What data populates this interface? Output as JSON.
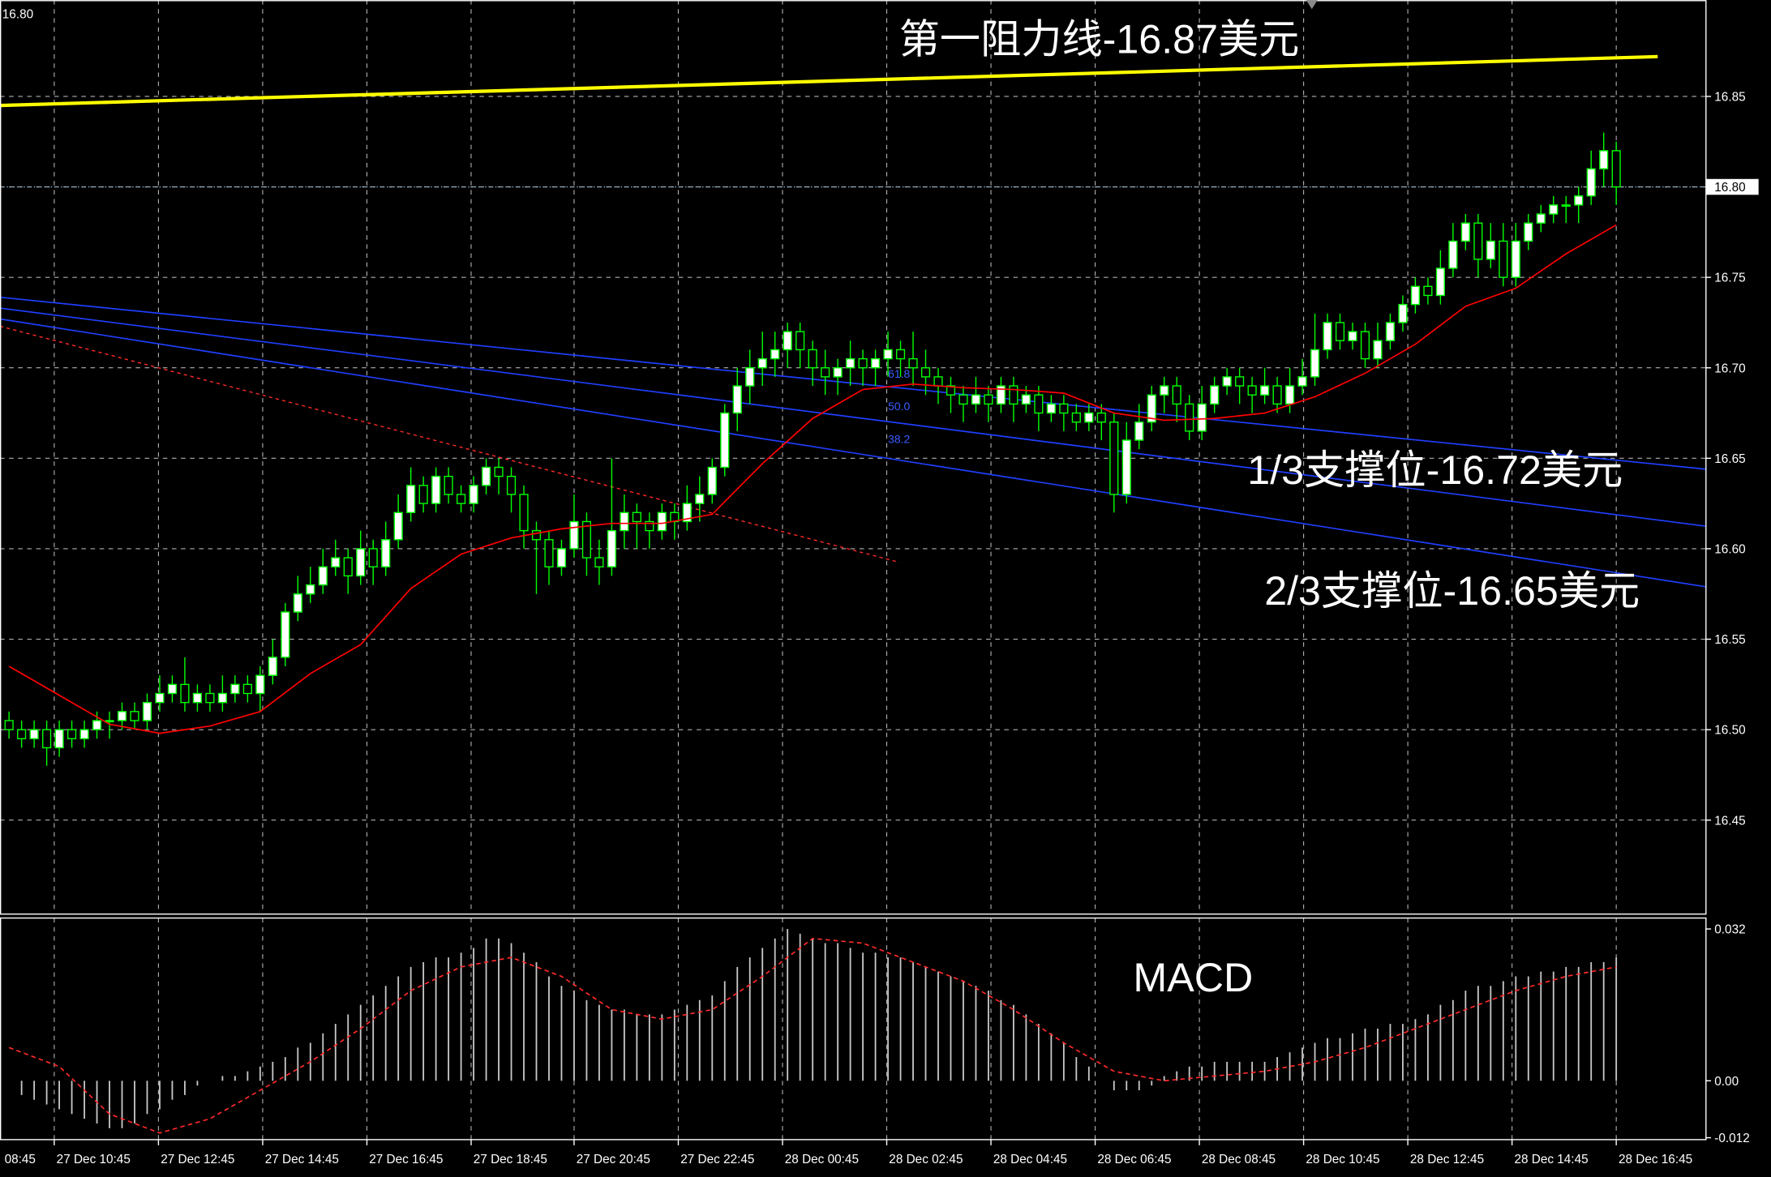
{
  "chart_data": {
    "type": "candlestick",
    "corner_label": "16.80",
    "xlim": [
      -0.72,
      135.1
    ],
    "ylim": [
      16.399,
      16.902
    ],
    "xticks": [
      {
        "value": -4.7,
        "label": "08:45"
      },
      {
        "value": 3.6,
        "label": "27 Dec 10:45"
      },
      {
        "value": 11.9,
        "label": "27 Dec 12:45"
      },
      {
        "value": 20.2,
        "label": "27 Dec 14:45"
      },
      {
        "value": 28.5,
        "label": "27 Dec 16:45"
      },
      {
        "value": 36.8,
        "label": "27 Dec 18:45"
      },
      {
        "value": 45.0,
        "label": "27 Dec 20:45"
      },
      {
        "value": 53.3,
        "label": "27 Dec 22:45"
      },
      {
        "value": 61.6,
        "label": "28 Dec 00:45"
      },
      {
        "value": 69.9,
        "label": "28 Dec 02:45"
      },
      {
        "value": 78.2,
        "label": "28 Dec 04:45"
      },
      {
        "value": 86.5,
        "label": "28 Dec 06:45"
      },
      {
        "value": 94.8,
        "label": "28 Dec 08:45"
      },
      {
        "value": 103.1,
        "label": "28 Dec 10:45"
      },
      {
        "value": 111.4,
        "label": "28 Dec 12:45"
      },
      {
        "value": 119.7,
        "label": "28 Dec 14:45"
      },
      {
        "value": 128.0,
        "label": "28 Dec 16:45"
      }
    ],
    "yticks": [
      16.45,
      {
        "value": 16.5,
        "label": "16.50"
      },
      16.55,
      {
        "value": 16.6,
        "label": "16.60"
      },
      16.65,
      {
        "value": 16.7,
        "label": "16.70"
      },
      16.75,
      {
        "value": 16.8,
        "label": "16.80"
      },
      16.85
    ],
    "grid": true,
    "candle_colors": {
      "up": "#ffffff",
      "down": "#000000",
      "edge": "#00ff00"
    },
    "open": [
      16.505,
      16.5,
      16.495,
      16.5,
      16.49,
      16.5,
      16.495,
      16.5,
      16.505,
      16.505,
      16.51,
      16.505,
      16.515,
      16.52,
      16.525,
      16.515,
      16.52,
      16.515,
      16.52,
      16.525,
      16.52,
      16.53,
      16.54,
      16.565,
      16.575,
      16.58,
      16.59,
      16.595,
      16.585,
      16.6,
      16.59,
      16.605,
      16.62,
      16.635,
      16.625,
      16.64,
      16.63,
      16.625,
      16.635,
      16.645,
      16.64,
      16.63,
      16.61,
      16.605,
      16.59,
      16.6,
      16.615,
      16.595,
      16.59,
      16.61,
      16.62,
      16.615,
      16.61,
      16.62,
      16.615,
      16.625,
      16.63,
      16.645,
      16.675,
      16.69,
      16.7,
      16.705,
      16.71,
      16.72,
      16.71,
      16.7,
      16.695,
      16.7,
      16.705,
      16.7,
      16.705,
      16.71,
      16.705,
      16.7,
      16.695,
      16.69,
      16.685,
      16.68,
      16.685,
      16.68,
      16.69,
      16.68,
      16.685,
      16.675,
      16.68,
      16.675,
      16.67,
      16.675,
      16.67,
      16.63,
      16.66,
      16.67,
      16.685,
      16.69,
      16.68,
      16.665,
      16.68,
      16.69,
      16.695,
      16.69,
      16.685,
      16.69,
      16.68,
      16.69,
      16.695,
      16.71,
      16.725,
      16.715,
      16.72,
      16.705,
      16.715,
      16.725,
      16.735,
      16.745,
      16.74,
      16.755,
      16.77,
      16.78,
      16.76,
      16.77,
      16.75,
      16.77,
      16.78,
      16.785,
      16.79,
      16.79,
      16.795,
      16.81,
      16.82
    ],
    "high": [
      16.51,
      16.505,
      16.505,
      16.505,
      16.505,
      16.505,
      16.505,
      16.51,
      16.51,
      16.515,
      16.515,
      16.52,
      16.53,
      16.53,
      16.54,
      16.525,
      16.525,
      16.53,
      16.53,
      16.53,
      16.535,
      16.55,
      16.57,
      16.585,
      16.59,
      16.6,
      16.605,
      16.6,
      16.61,
      16.605,
      16.615,
      16.63,
      16.645,
      16.64,
      16.645,
      16.645,
      16.635,
      16.64,
      16.65,
      16.65,
      16.645,
      16.635,
      16.615,
      16.61,
      16.605,
      16.63,
      16.62,
      16.605,
      16.65,
      16.63,
      16.625,
      16.62,
      16.625,
      16.625,
      16.635,
      16.64,
      16.65,
      16.68,
      16.7,
      16.71,
      16.72,
      16.72,
      16.725,
      16.725,
      16.715,
      16.71,
      16.705,
      16.715,
      16.71,
      16.71,
      16.72,
      16.715,
      16.72,
      16.71,
      16.7,
      16.695,
      16.69,
      16.695,
      16.69,
      16.695,
      16.695,
      16.69,
      16.69,
      16.685,
      16.685,
      16.68,
      16.68,
      16.68,
      16.675,
      16.67,
      16.68,
      16.69,
      16.695,
      16.695,
      16.685,
      16.69,
      16.695,
      16.7,
      16.7,
      16.695,
      16.7,
      16.695,
      16.7,
      16.705,
      16.73,
      16.73,
      16.73,
      16.725,
      16.725,
      16.725,
      16.73,
      16.74,
      16.75,
      16.75,
      16.765,
      16.78,
      16.785,
      16.785,
      16.78,
      16.78,
      16.78,
      16.785,
      16.79,
      16.795,
      16.795,
      16.8,
      16.82,
      16.83,
      16.825
    ],
    "low": [
      16.495,
      16.49,
      16.49,
      16.48,
      16.485,
      16.49,
      16.49,
      16.495,
      16.495,
      16.5,
      16.5,
      16.5,
      16.51,
      16.515,
      16.51,
      16.51,
      16.51,
      16.51,
      16.515,
      16.515,
      16.51,
      16.525,
      16.535,
      16.56,
      16.57,
      16.575,
      16.585,
      16.575,
      16.58,
      16.58,
      16.585,
      16.6,
      16.615,
      16.62,
      16.62,
      16.625,
      16.62,
      16.62,
      16.63,
      16.63,
      16.62,
      16.6,
      16.575,
      16.58,
      16.585,
      16.595,
      16.585,
      16.58,
      16.585,
      16.6,
      16.6,
      16.6,
      16.605,
      16.605,
      16.61,
      16.615,
      16.625,
      16.64,
      16.665,
      16.68,
      16.69,
      16.695,
      16.7,
      16.7,
      16.69,
      16.685,
      16.685,
      16.69,
      16.69,
      16.69,
      16.695,
      16.695,
      16.69,
      16.685,
      16.68,
      16.675,
      16.67,
      16.675,
      16.67,
      16.675,
      16.67,
      16.675,
      16.665,
      16.67,
      16.665,
      16.665,
      16.665,
      16.66,
      16.62,
      16.625,
      16.655,
      16.665,
      16.675,
      16.67,
      16.66,
      16.66,
      16.675,
      16.685,
      16.68,
      16.675,
      16.68,
      16.675,
      16.675,
      16.685,
      16.69,
      16.705,
      16.71,
      16.71,
      16.7,
      16.7,
      16.71,
      16.72,
      16.73,
      16.735,
      16.735,
      16.75,
      16.765,
      16.75,
      16.755,
      16.745,
      16.745,
      16.765,
      16.775,
      16.78,
      16.78,
      16.78,
      16.79,
      16.8,
      16.79
    ],
    "close": [
      16.5,
      16.495,
      16.5,
      16.49,
      16.5,
      16.495,
      16.5,
      16.505,
      16.505,
      16.51,
      16.505,
      16.515,
      16.52,
      16.525,
      16.515,
      16.52,
      16.515,
      16.52,
      16.525,
      16.52,
      16.53,
      16.54,
      16.565,
      16.575,
      16.58,
      16.59,
      16.595,
      16.585,
      16.6,
      16.59,
      16.605,
      16.62,
      16.635,
      16.625,
      16.64,
      16.63,
      16.625,
      16.635,
      16.645,
      16.64,
      16.63,
      16.61,
      16.605,
      16.59,
      16.6,
      16.615,
      16.595,
      16.59,
      16.61,
      16.62,
      16.615,
      16.61,
      16.62,
      16.615,
      16.625,
      16.63,
      16.645,
      16.675,
      16.69,
      16.7,
      16.705,
      16.71,
      16.72,
      16.71,
      16.7,
      16.695,
      16.7,
      16.705,
      16.7,
      16.705,
      16.71,
      16.705,
      16.7,
      16.695,
      16.69,
      16.685,
      16.68,
      16.685,
      16.68,
      16.69,
      16.68,
      16.685,
      16.675,
      16.68,
      16.675,
      16.67,
      16.675,
      16.67,
      16.63,
      16.66,
      16.67,
      16.685,
      16.69,
      16.68,
      16.665,
      16.68,
      16.69,
      16.695,
      16.69,
      16.685,
      16.69,
      16.68,
      16.69,
      16.695,
      16.71,
      16.725,
      16.715,
      16.72,
      16.705,
      16.715,
      16.725,
      16.735,
      16.745,
      16.74,
      16.755,
      16.77,
      16.78,
      16.76,
      16.77,
      16.75,
      16.77,
      16.78,
      16.785,
      16.79,
      16.79,
      16.795,
      16.81,
      16.82,
      16.8
    ],
    "ma": {
      "color": "#ff0000",
      "x": [
        0,
        8,
        12,
        16,
        20,
        24,
        28,
        32,
        36,
        40,
        44,
        48,
        52,
        56,
        60,
        64,
        68,
        72,
        76,
        80,
        84,
        88,
        92,
        96,
        100,
        104,
        108,
        112,
        116,
        120,
        124,
        128
      ],
      "values": [
        16.535,
        16.503,
        16.498,
        16.502,
        16.51,
        16.531,
        16.547,
        16.578,
        16.597,
        16.606,
        16.611,
        16.614,
        16.614,
        16.619,
        16.647,
        16.672,
        16.688,
        16.691,
        16.689,
        16.688,
        16.686,
        16.675,
        16.671,
        16.672,
        16.675,
        16.684,
        16.697,
        16.713,
        16.734,
        16.744,
        16.763,
        16.779
      ]
    },
    "trend_lines": [
      {
        "color": "#ffff00",
        "width": 3,
        "x": [
          -0.72,
          131.3
        ],
        "y": [
          16.845,
          16.872
        ]
      },
      {
        "color": "#1f3fff",
        "width": 1.2,
        "x": [
          -0.72,
          135.1
        ],
        "y": [
          16.739,
          16.644
        ]
      },
      {
        "color": "#1f3fff",
        "width": 1.2,
        "x": [
          -0.72,
          135.1
        ],
        "y": [
          16.733,
          16.6125
        ]
      },
      {
        "color": "#1f3fff",
        "width": 1.2,
        "x": [
          -0.72,
          135.1
        ],
        "y": [
          16.727,
          16.579
        ]
      },
      {
        "color": "#ff2a2a",
        "width": 1,
        "dashed": true,
        "x": [
          -0.72,
          70.9
        ],
        "y": [
          16.723,
          16.5925
        ]
      }
    ],
    "price_line": {
      "value": 16.8,
      "label": "16.80",
      "color": "#8fb8d8"
    },
    "fib_labels": [
      {
        "text": "61.8",
        "x": 70,
        "y": 16.697
      },
      {
        "text": "50.0",
        "x": 70,
        "y": 16.679
      },
      {
        "text": "38.2",
        "x": 70,
        "y": 16.661
      }
    ],
    "annotations": [
      "第一阻力线-16.87美元",
      "1/3支撑位-16.72美元",
      "2/3支撑位-16.65美元"
    ],
    "macd": {
      "title": "MACD",
      "y2lim": [
        -0.0124,
        0.0343
      ],
      "y2ticks": [
        0.032,
        {
          "value": 0,
          "label": "0.00"
        },
        -0.012
      ],
      "histogram": {
        "color": "#c8c8c8",
        "values": [
          0,
          -0.003,
          -0.004,
          -0.005,
          -0.006,
          -0.007,
          -0.008,
          -0.009,
          -0.01,
          -0.01,
          -0.009,
          -0.007,
          -0.006,
          -0.004,
          -0.003,
          -0.001,
          0.0,
          0.001,
          0.001,
          0.002,
          0.003,
          0.004,
          0.005,
          0.007,
          0.008,
          0.01,
          0.012,
          0.014,
          0.016,
          0.018,
          0.02,
          0.022,
          0.024,
          0.025,
          0.026,
          0.026,
          0.027,
          0.028,
          0.03,
          0.03,
          0.029,
          0.027,
          0.025,
          0.022,
          0.02,
          0.019,
          0.017,
          0.016,
          0.015,
          0.015,
          0.014,
          0.014,
          0.014,
          0.015,
          0.016,
          0.017,
          0.018,
          0.021,
          0.024,
          0.026,
          0.028,
          0.03,
          0.032,
          0.031,
          0.03,
          0.029,
          0.029,
          0.028,
          0.027,
          0.027,
          0.026,
          0.026,
          0.025,
          0.024,
          0.023,
          0.022,
          0.021,
          0.02,
          0.019,
          0.017,
          0.016,
          0.014,
          0.012,
          0.01,
          0.008,
          0.005,
          0.003,
          0.0,
          -0.002,
          -0.002,
          -0.002,
          -0.001,
          0.001,
          0.002,
          0.003,
          0.003,
          0.004,
          0.004,
          0.004,
          0.004,
          0.004,
          0.005,
          0.006,
          0.007,
          0.008,
          0.009,
          0.009,
          0.01,
          0.011,
          0.011,
          0.012,
          0.012,
          0.013,
          0.014,
          0.016,
          0.017,
          0.019,
          0.02,
          0.02,
          0.021,
          0.022,
          0.022,
          0.023,
          0.023,
          0.024,
          0.024,
          0.025,
          0.025,
          0.026
        ]
      },
      "signal": {
        "color": "#ff2a2a",
        "x": [
          0,
          4,
          8,
          12,
          16,
          20,
          24,
          28,
          32,
          36,
          40,
          44,
          48,
          52,
          56,
          60,
          64,
          68,
          72,
          76,
          80,
          84,
          88,
          92,
          96,
          100,
          104,
          108,
          112,
          116,
          120,
          124,
          128
        ],
        "values": [
          0.007,
          0.003,
          -0.007,
          -0.011,
          -0.008,
          -0.002,
          0.004,
          0.011,
          0.019,
          0.024,
          0.026,
          0.022,
          0.015,
          0.013,
          0.015,
          0.022,
          0.03,
          0.029,
          0.025,
          0.021,
          0.015,
          0.008,
          0.002,
          0.0,
          0.001,
          0.002,
          0.004,
          0.007,
          0.011,
          0.015,
          0.019,
          0.022,
          0.024
        ]
      }
    }
  }
}
